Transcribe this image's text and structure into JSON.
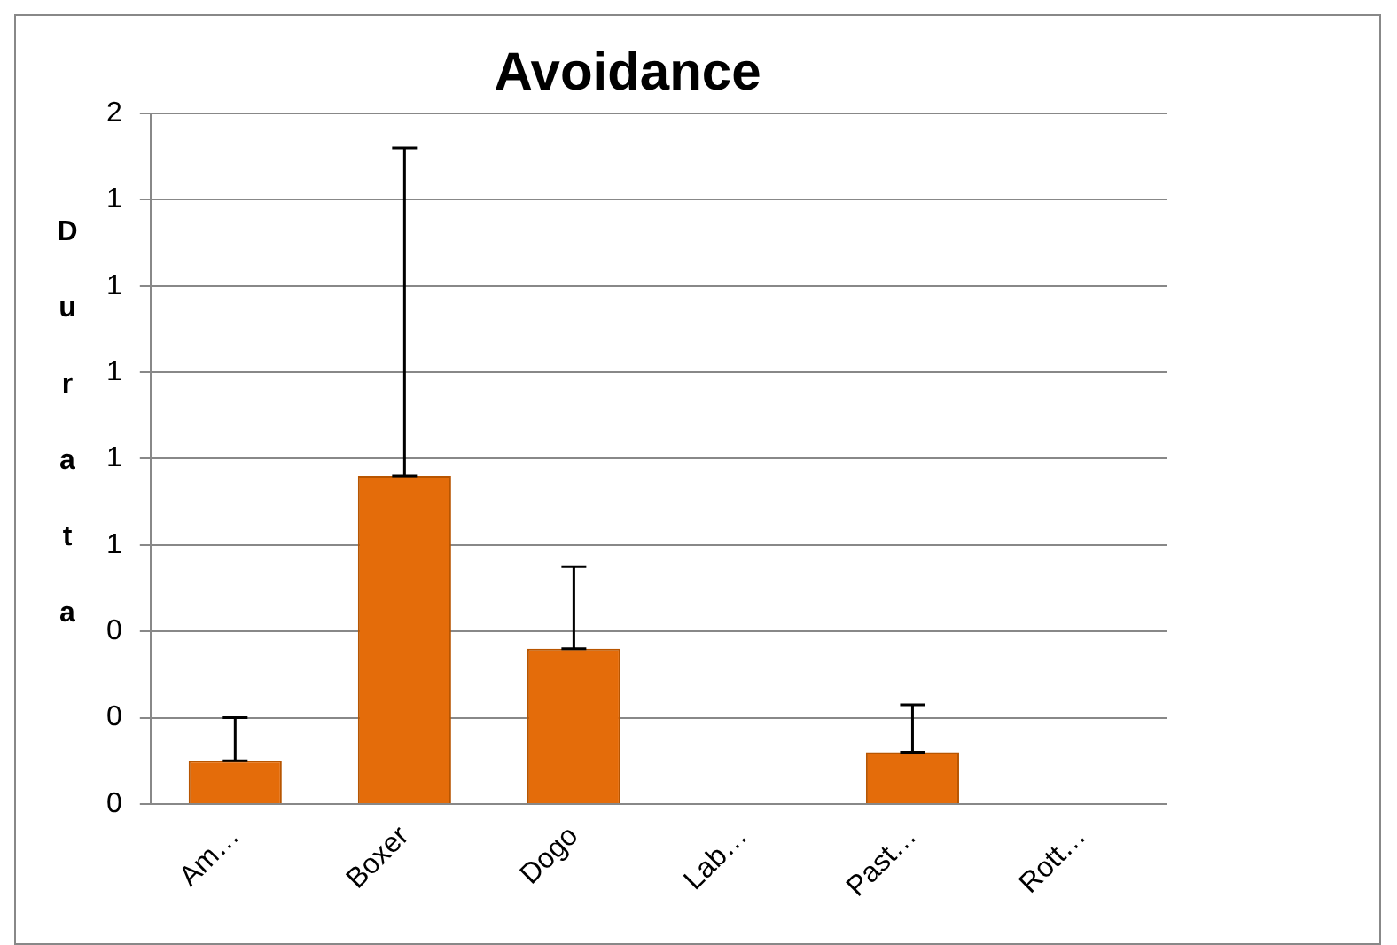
{
  "chart_data": {
    "type": "bar",
    "title": "Avoidance",
    "ylabel": "Durata",
    "categories": [
      "Am…",
      "Boxer",
      "Dogo",
      "Lab…",
      "Past…",
      "Rott…"
    ],
    "values": [
      0.1,
      0.76,
      0.36,
      0,
      0.12,
      0
    ],
    "errors": [
      [
        0.1,
        0.2
      ],
      [
        0.76,
        1.52
      ],
      [
        0.36,
        0.55
      ],
      null,
      [
        0.12,
        0.23
      ],
      null
    ],
    "color": "#e46c0a",
    "ylim": [
      0,
      1.6
    ],
    "yticks": [
      0,
      {
        "value": 0.2,
        "label": "0"
      },
      {
        "value": 0.4,
        "label": "0"
      },
      {
        "value": 0.6,
        "label": "1"
      },
      {
        "value": 0.8,
        "label": "1"
      },
      {
        "value": 1,
        "label": "1"
      },
      {
        "value": 1.2,
        "label": "1"
      },
      {
        "value": 1.4,
        "label": "1"
      },
      {
        "value": 1.6,
        "label": "2"
      }
    ],
    "grid": "y",
    "legend": false
  }
}
